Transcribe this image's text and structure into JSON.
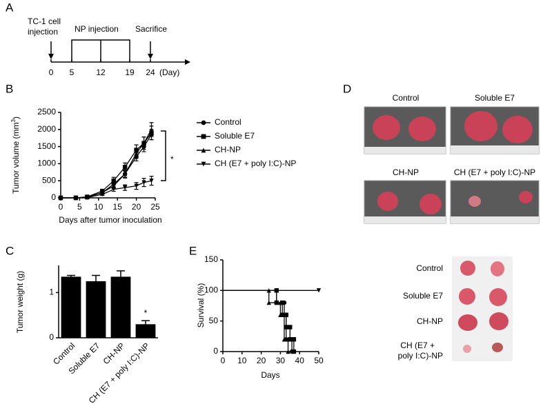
{
  "panel_labels": [
    "A",
    "B",
    "C",
    "D",
    "E"
  ],
  "timeline": {
    "ticks": [
      0,
      5,
      12,
      19,
      24
    ],
    "unit": "(Day)",
    "injection_label": [
      "TC-1 cell",
      "injection"
    ],
    "np_label": "NP injection",
    "sacrifice_label": "Sacrifice"
  },
  "chart_data": [
    {
      "type": "line",
      "xlabel": "Days after tumor inoculation",
      "ylabel": "Tumor volume (mm",
      "ylabel_sup": "3",
      "ylabel_end": ")",
      "x": [
        0,
        4,
        7,
        11,
        14,
        17,
        20,
        22,
        24
      ],
      "xlim": [
        0,
        25
      ],
      "xticks": [
        0,
        5,
        10,
        15,
        20,
        25
      ],
      "ylim": [
        0,
        2500
      ],
      "yticks": [
        0,
        500,
        1000,
        1500,
        2000,
        2500
      ],
      "series": [
        {
          "name": "Control",
          "marker": "circle",
          "color": "#000000",
          "values": [
            0,
            0,
            20,
            150,
            400,
            700,
            1200,
            1500,
            1850
          ],
          "errors": [
            0,
            0,
            10,
            40,
            80,
            100,
            120,
            150,
            150
          ]
        },
        {
          "name": "Soluble E7",
          "marker": "square",
          "color": "#000000",
          "values": [
            0,
            0,
            30,
            200,
            500,
            900,
            1400,
            1600,
            1900
          ],
          "errors": [
            0,
            0,
            10,
            50,
            100,
            120,
            150,
            180,
            200
          ]
        },
        {
          "name": "CH-NP",
          "marker": "triangle",
          "color": "#000000",
          "values": [
            0,
            0,
            20,
            150,
            350,
            700,
            1300,
            1600,
            2000
          ],
          "errors": [
            0,
            0,
            10,
            40,
            80,
            120,
            150,
            180,
            200
          ]
        },
        {
          "name": "CH (E7 + poly I:C)-NP",
          "marker": "triangle-down",
          "color": "#000000",
          "values": [
            0,
            0,
            10,
            100,
            250,
            300,
            350,
            450,
            500
          ],
          "errors": [
            0,
            0,
            5,
            30,
            60,
            80,
            100,
            120,
            130
          ]
        }
      ],
      "annotations": [
        "*"
      ]
    },
    {
      "type": "bar",
      "ylabel": "Tumor weight (g)",
      "categories": [
        "Control",
        "Soluble E7",
        "CH-NP",
        "CH (E7 + poly I:C)-NP"
      ],
      "values": [
        1.35,
        1.25,
        1.35,
        0.3
      ],
      "errors": [
        0.03,
        0.13,
        0.13,
        0.08
      ],
      "color": "#000000",
      "ylim": [
        0,
        1.6
      ],
      "yticks": [
        0,
        1
      ],
      "annotations": [
        "*"
      ]
    },
    {
      "type": "step",
      "xlabel": "Days",
      "ylabel": "Survival  (%)",
      "xlim": [
        0,
        50
      ],
      "xticks": [
        0,
        10,
        20,
        30,
        40,
        50
      ],
      "ylim": [
        0,
        150
      ],
      "yticks": [
        0,
        50,
        100,
        150
      ],
      "series": [
        {
          "marker": "circle",
          "color": "#000000",
          "x": [
            0,
            28,
            28,
            32,
            32,
            33,
            33,
            36,
            36
          ],
          "values": [
            100,
            100,
            80,
            80,
            60,
            60,
            20,
            20,
            0
          ]
        },
        {
          "marker": "square",
          "color": "#000000",
          "x": [
            0,
            28,
            28,
            31,
            31,
            33,
            33,
            35,
            35,
            37,
            37
          ],
          "values": [
            100,
            100,
            80,
            80,
            60,
            60,
            40,
            40,
            20,
            20,
            0
          ]
        },
        {
          "marker": "triangle",
          "color": "#000000",
          "x": [
            0,
            24,
            24,
            30,
            30,
            32,
            32,
            34,
            34
          ],
          "values": [
            100,
            100,
            80,
            80,
            60,
            60,
            20,
            20,
            0
          ]
        },
        {
          "marker": "triangle-down",
          "color": "#000000",
          "x": [
            0,
            50
          ],
          "values": [
            100,
            100
          ]
        }
      ]
    }
  ],
  "photos": {
    "mouse_labels": [
      "Control",
      "Soluble E7",
      "CH-NP",
      "CH (E7 + poly I:C)-NP"
    ],
    "tumor_labels": [
      "Control",
      "Soluble E7",
      "CH-NP",
      "CH (E7 +",
      "poly I:C)-NP"
    ]
  }
}
